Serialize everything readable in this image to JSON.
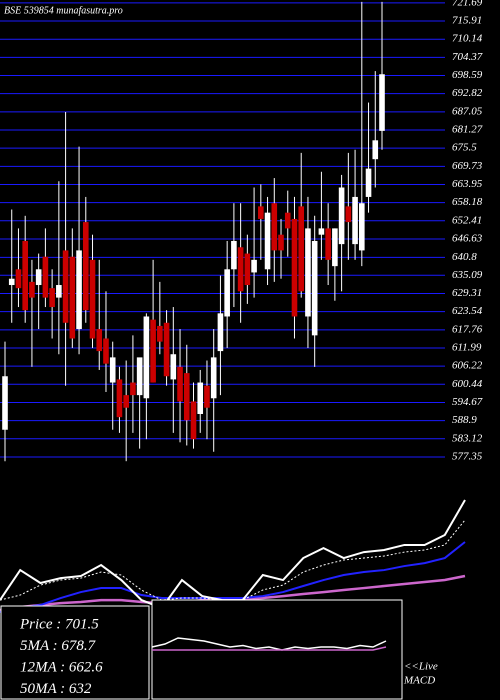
{
  "chart_data": {
    "type": "candlestick",
    "title": "BSE 539854 munafasutra.pro",
    "ylim": [
      573.2,
      722.6
    ],
    "yticks": [
      721.69,
      715.91,
      710.14,
      704.37,
      698.59,
      692.82,
      687.05,
      681.27,
      675.5,
      669.73,
      663.95,
      658.18,
      652.41,
      646.63,
      640.8,
      635.09,
      629.31,
      623.54,
      617.76,
      611.99,
      606.22,
      600.44,
      594.67,
      588.9,
      583.12,
      577.35
    ],
    "grid": true,
    "grid_color": "#1a1aff",
    "up_color": "#ffffff",
    "down_color": "#cc0000",
    "open": [
      586,
      632,
      637,
      646,
      633,
      632,
      641,
      631,
      628,
      643,
      641,
      618,
      652,
      640,
      618,
      615,
      601,
      602,
      597,
      601,
      597,
      596,
      621,
      619,
      620,
      602,
      606,
      604,
      595,
      591,
      600,
      596,
      611,
      622,
      637,
      644,
      642,
      636,
      657,
      637,
      658,
      648,
      655,
      653,
      657,
      622,
      616,
      648,
      650,
      638,
      645,
      657,
      645,
      643,
      660,
      672,
      681
    ],
    "high": [
      614,
      656,
      650,
      654,
      640,
      642,
      650,
      637,
      665,
      687,
      650,
      676,
      660,
      648,
      640,
      630,
      614,
      606,
      608,
      616,
      608,
      623,
      640,
      633,
      624,
      625,
      618,
      613,
      601,
      605,
      608,
      618,
      635,
      646,
      658,
      658,
      648,
      663,
      664,
      660,
      666,
      653,
      662,
      660,
      674,
      660,
      654,
      668,
      658,
      650,
      667,
      674,
      675,
      722,
      690,
      700,
      722
    ],
    "low": [
      576,
      620,
      625,
      620,
      606,
      618,
      625,
      615,
      610,
      600,
      612,
      610,
      620,
      612,
      605,
      598,
      586,
      585,
      576,
      585,
      580,
      583,
      601,
      610,
      600,
      585,
      582,
      581,
      580,
      585,
      583,
      579,
      597,
      612,
      625,
      620,
      626,
      628,
      640,
      632,
      633,
      634,
      641,
      615,
      628,
      612,
      606,
      640,
      632,
      627,
      630,
      640,
      640,
      638,
      655,
      663,
      675
    ],
    "close": [
      603,
      634,
      631,
      624,
      628,
      637,
      628,
      625,
      632,
      620,
      615,
      643,
      624,
      615,
      611,
      607,
      609,
      590,
      593,
      597,
      609,
      622,
      601,
      614,
      603,
      610,
      595,
      589,
      583,
      601,
      593,
      609,
      623,
      637,
      646,
      630,
      632,
      640,
      653,
      655,
      643,
      643,
      650,
      622,
      630,
      650,
      646,
      650,
      640,
      650,
      663,
      652,
      660,
      658,
      669,
      678,
      699
    ],
    "indicator_ylim": [
      560,
      730
    ],
    "indicators": [
      {
        "name": "50MA",
        "color": "#cc66cc",
        "width": 2.5,
        "values": [
          629.5,
          631.9,
          633.4,
          634.9,
          635.7,
          637.2,
          637.2,
          635.7,
          634.9,
          635.7,
          637.2,
          637.2,
          638,
          638.8,
          640.3,
          641.9,
          643.4,
          645,
          646.5,
          648.1,
          649.6,
          651.2,
          652.7,
          655.8
        ]
      },
      {
        "name": "12MA",
        "color": "#2222ff",
        "width": 2,
        "values": [
          628,
          631.1,
          633.4,
          638.8,
          643.4,
          646.5,
          646.5,
          641.1,
          638.8,
          638.8,
          638.8,
          638.8,
          638.8,
          640.3,
          643.4,
          648.1,
          652.7,
          656.6,
          658.9,
          660.4,
          663.5,
          665.8,
          669.7,
          682.1
        ]
      },
      {
        "name": "5MA",
        "color": "#ffffff",
        "width": 1,
        "dash": true,
        "values": [
          637.2,
          641.1,
          648.8,
          652.7,
          654.2,
          658.9,
          656.6,
          644.9,
          637.2,
          638.8,
          638.8,
          637.2,
          637.2,
          645,
          648.8,
          658.9,
          664.3,
          668.2,
          669.7,
          671.3,
          674.3,
          675.9,
          679.8,
          699.1
        ]
      },
      {
        "name": "Price",
        "color": "#ffffff",
        "width": 2,
        "values": [
          637.2,
          660.4,
          650.4,
          654.2,
          655.8,
          664.3,
          652.7,
          637.2,
          631.1,
          652.7,
          640.3,
          637.2,
          637.2,
          656.6,
          652.7,
          669.7,
          677.4,
          669.7,
          674.3,
          675.9,
          679.8,
          679.8,
          687.5,
          714.5
        ]
      }
    ],
    "info": [
      "Price  : 701.5",
      "5MA : 678.7",
      "12MA : 662.6",
      "50MA : 632"
    ],
    "macd_label": [
      "<<Live",
      "MACD"
    ],
    "macd_ylim": [
      -1,
      1
    ],
    "macd": [
      {
        "name": "MACD",
        "color": "#ffffff",
        "values": [
          0.1,
          0.2,
          0.4,
          0.35,
          0.3,
          0.2,
          0.1,
          0.15,
          0.05,
          0.1,
          0,
          0.1,
          0.05,
          0.1,
          0.1,
          0.05,
          0.15,
          0.1,
          0.3
        ]
      },
      {
        "name": "Signal",
        "color": "#cc66cc",
        "values": [
          0,
          0,
          0,
          0,
          0,
          0,
          0,
          0,
          0,
          0,
          0,
          0,
          0,
          0,
          0,
          0,
          0,
          0,
          0.1
        ]
      }
    ]
  }
}
